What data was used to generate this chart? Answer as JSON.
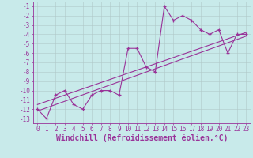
{
  "xlabel": "Windchill (Refroidissement éolien,°C)",
  "bg_color": "#c8eaea",
  "grid_color": "#b0c8c8",
  "line_color": "#993399",
  "xlim": [
    -0.5,
    23.5
  ],
  "ylim": [
    -13.5,
    -0.5
  ],
  "xticks": [
    0,
    1,
    2,
    3,
    4,
    5,
    6,
    7,
    8,
    9,
    10,
    11,
    12,
    13,
    14,
    15,
    16,
    17,
    18,
    19,
    20,
    21,
    22,
    23
  ],
  "yticks": [
    -1,
    -2,
    -3,
    -4,
    -5,
    -6,
    -7,
    -8,
    -9,
    -10,
    -11,
    -12,
    -13
  ],
  "scatter_x": [
    0,
    1,
    2,
    3,
    4,
    5,
    6,
    7,
    8,
    9,
    10,
    11,
    12,
    13,
    14,
    15,
    16,
    17,
    18,
    19,
    20,
    21,
    22,
    23
  ],
  "scatter_y": [
    -12,
    -13,
    -10.5,
    -10,
    -11.5,
    -12,
    -10.5,
    -10,
    -10,
    -10.5,
    -5.5,
    -5.5,
    -7.5,
    -8,
    -1,
    -2.5,
    -2,
    -2.5,
    -3.5,
    -4,
    -3.5,
    -6,
    -4,
    -4
  ],
  "line1_x": [
    0,
    23
  ],
  "line1_y": [
    -12.2,
    -4.2
  ],
  "line2_x": [
    0,
    23
  ],
  "line2_y": [
    -11.5,
    -3.8
  ],
  "xlabel_fontsize": 7,
  "tick_fontsize": 5.5
}
